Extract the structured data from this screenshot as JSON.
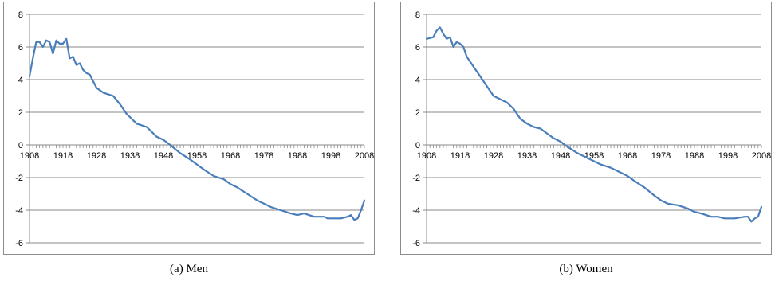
{
  "captions": {
    "left": "(a)  Men",
    "right": "(b)  Women"
  },
  "chart_data": [
    {
      "type": "line",
      "title": "",
      "xlabel": "",
      "ylabel": "",
      "xlim": [
        1908,
        2008
      ],
      "ylim": [
        -6,
        8
      ],
      "xticks": [
        1908,
        1918,
        1928,
        1938,
        1948,
        1958,
        1968,
        1978,
        1988,
        1998,
        2008
      ],
      "yticks": [
        -6,
        -4,
        -2,
        0,
        2,
        4,
        6,
        8
      ],
      "grid": "horizontal",
      "legend": "none",
      "color": "#4a7ebb",
      "series": [
        {
          "x": [
            1908,
            1909,
            1910,
            1911,
            1912,
            1913,
            1914,
            1915,
            1916,
            1917,
            1918,
            1919,
            1920,
            1921,
            1922,
            1923,
            1924,
            1925,
            1926,
            1928,
            1930,
            1933,
            1935,
            1937,
            1940,
            1943,
            1946,
            1948,
            1950,
            1953,
            1956,
            1958,
            1960,
            1963,
            1966,
            1968,
            1970,
            1973,
            1976,
            1978,
            1980,
            1983,
            1986,
            1988,
            1990,
            1993,
            1995,
            1996,
            1997,
            1998,
            1999,
            2000,
            2001,
            2003,
            2004,
            2005,
            2006,
            2007,
            2008
          ],
          "y": [
            4.2,
            5.3,
            6.3,
            6.3,
            6.0,
            6.4,
            6.3,
            5.6,
            6.4,
            6.2,
            6.2,
            6.5,
            5.3,
            5.4,
            4.9,
            5.0,
            4.6,
            4.4,
            4.3,
            3.5,
            3.2,
            3.0,
            2.5,
            1.9,
            1.3,
            1.1,
            0.5,
            0.3,
            0.0,
            -0.5,
            -0.9,
            -1.2,
            -1.5,
            -1.9,
            -2.1,
            -2.4,
            -2.6,
            -3.0,
            -3.4,
            -3.6,
            -3.8,
            -4.0,
            -4.2,
            -4.3,
            -4.2,
            -4.4,
            -4.4,
            -4.4,
            -4.5,
            -4.5,
            -4.5,
            -4.5,
            -4.5,
            -4.4,
            -4.3,
            -4.6,
            -4.5,
            -4.0,
            -3.4
          ]
        }
      ]
    },
    {
      "type": "line",
      "title": "",
      "xlabel": "",
      "ylabel": "",
      "xlim": [
        1908,
        2008
      ],
      "ylim": [
        -6,
        8
      ],
      "xticks": [
        1908,
        1918,
        1928,
        1938,
        1948,
        1958,
        1968,
        1978,
        1988,
        1998,
        2008
      ],
      "yticks": [
        -6,
        -4,
        -2,
        0,
        2,
        4,
        6,
        8
      ],
      "grid": "horizontal",
      "legend": "none",
      "color": "#4a7ebb",
      "series": [
        {
          "x": [
            1908,
            1910,
            1911,
            1912,
            1913,
            1914,
            1915,
            1916,
            1917,
            1918,
            1919,
            1920,
            1922,
            1924,
            1926,
            1928,
            1930,
            1932,
            1934,
            1936,
            1938,
            1940,
            1942,
            1944,
            1946,
            1948,
            1950,
            1953,
            1956,
            1958,
            1960,
            1963,
            1966,
            1968,
            1970,
            1973,
            1976,
            1978,
            1980,
            1983,
            1986,
            1988,
            1990,
            1993,
            1995,
            1997,
            1998,
            2000,
            2003,
            2004,
            2005,
            2006,
            2007,
            2008
          ],
          "y": [
            6.5,
            6.6,
            7.0,
            7.2,
            6.8,
            6.5,
            6.6,
            6.0,
            6.3,
            6.2,
            6.0,
            5.4,
            4.8,
            4.2,
            3.6,
            3.0,
            2.8,
            2.6,
            2.2,
            1.6,
            1.3,
            1.1,
            1.0,
            0.7,
            0.4,
            0.2,
            -0.1,
            -0.5,
            -0.8,
            -1.0,
            -1.2,
            -1.4,
            -1.7,
            -1.9,
            -2.2,
            -2.6,
            -3.1,
            -3.4,
            -3.6,
            -3.7,
            -3.9,
            -4.1,
            -4.2,
            -4.4,
            -4.4,
            -4.5,
            -4.5,
            -4.5,
            -4.4,
            -4.4,
            -4.7,
            -4.5,
            -4.4,
            -3.8
          ]
        }
      ]
    }
  ]
}
